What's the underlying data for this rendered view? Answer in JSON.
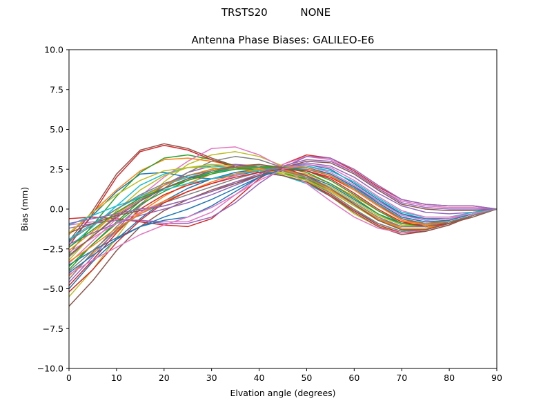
{
  "figure": {
    "suptitle": "TRSTS20          NONE"
  },
  "chart_data": {
    "type": "line",
    "title": "Antenna Phase Biases: GALILEO-E6",
    "xlabel": "Elvation angle (degrees)",
    "ylabel": "Bias (mm)",
    "xlim": [
      0,
      90
    ],
    "ylim": [
      -10,
      10
    ],
    "xticks": [
      0,
      10,
      20,
      30,
      40,
      50,
      60,
      70,
      80,
      90
    ],
    "yticks": [
      -10.0,
      -7.5,
      -5.0,
      -2.5,
      0.0,
      2.5,
      5.0,
      7.5,
      10.0
    ],
    "grid": false,
    "legend": "none",
    "x": [
      0,
      5,
      10,
      15,
      20,
      25,
      30,
      35,
      40,
      45,
      50,
      55,
      60,
      65,
      70,
      75,
      80,
      85,
      90
    ],
    "series": [
      {
        "color": "#1f77b4",
        "values": [
          -5.0,
          -3.3,
          -1.9,
          -0.6,
          0.5,
          1.3,
          1.9,
          2.3,
          2.5,
          2.4,
          2.1,
          1.5,
          0.6,
          -0.3,
          -0.9,
          -1.0,
          -0.8,
          -0.4,
          0.0
        ]
      },
      {
        "color": "#ff7f0e",
        "values": [
          -4.2,
          -2.8,
          -1.4,
          -0.2,
          0.8,
          1.6,
          2.2,
          2.6,
          2.7,
          2.5,
          2.1,
          1.3,
          0.3,
          -0.6,
          -1.2,
          -1.2,
          -0.9,
          -0.4,
          0.0
        ]
      },
      {
        "color": "#2ca02c",
        "values": [
          -3.8,
          -2.2,
          -0.8,
          0.5,
          1.5,
          2.1,
          2.5,
          2.7,
          2.6,
          2.3,
          1.8,
          1.0,
          0.0,
          -0.9,
          -1.4,
          -1.3,
          -0.9,
          -0.4,
          0.0
        ]
      },
      {
        "color": "#d62728",
        "values": [
          -0.6,
          -0.5,
          -0.6,
          -0.8,
          -1.0,
          -1.1,
          -0.6,
          0.6,
          1.9,
          2.8,
          3.4,
          3.2,
          2.4,
          1.4,
          0.6,
          0.3,
          0.2,
          0.2,
          0.0
        ]
      },
      {
        "color": "#9467bd",
        "values": [
          -4.6,
          -3.0,
          -1.3,
          0.3,
          1.5,
          2.3,
          2.7,
          2.8,
          2.7,
          2.4,
          1.9,
          1.1,
          0.2,
          -0.6,
          -1.1,
          -1.1,
          -0.8,
          -0.4,
          0.0
        ]
      },
      {
        "color": "#8c564b",
        "values": [
          -6.1,
          -4.5,
          -2.6,
          -1.1,
          -0.1,
          0.6,
          1.2,
          1.7,
          2.1,
          2.4,
          2.5,
          2.1,
          1.3,
          0.3,
          -0.6,
          -1.0,
          -0.9,
          -0.5,
          0.0
        ]
      },
      {
        "color": "#e377c2",
        "values": [
          -1.0,
          -0.8,
          -0.7,
          -0.7,
          -0.8,
          -0.8,
          -0.2,
          0.9,
          2.0,
          2.8,
          3.3,
          3.1,
          2.3,
          1.3,
          0.5,
          0.2,
          0.1,
          0.1,
          0.0
        ]
      },
      {
        "color": "#7f7f7f",
        "values": [
          -3.0,
          -1.7,
          -0.4,
          0.6,
          1.3,
          1.9,
          2.3,
          2.6,
          2.7,
          2.5,
          2.1,
          1.3,
          0.3,
          -0.7,
          -1.3,
          -1.3,
          -0.9,
          -0.4,
          0.0
        ]
      },
      {
        "color": "#bcbd22",
        "values": [
          -5.5,
          -3.8,
          -1.8,
          0.2,
          1.7,
          2.8,
          3.4,
          3.6,
          3.3,
          2.7,
          1.8,
          0.8,
          -0.3,
          -1.1,
          -1.5,
          -1.3,
          -0.9,
          -0.4,
          0.0
        ]
      },
      {
        "color": "#17becf",
        "values": [
          -2.4,
          -1.1,
          0.2,
          1.5,
          2.2,
          2.6,
          2.7,
          2.6,
          2.4,
          2.1,
          1.6,
          0.8,
          -0.1,
          -0.9,
          -1.4,
          -1.3,
          -0.9,
          -0.4,
          0.0
        ]
      },
      {
        "color": "#1f77b4",
        "values": [
          -2.1,
          -0.4,
          1.1,
          2.2,
          2.3,
          2.0,
          1.9,
          2.1,
          2.4,
          2.6,
          2.6,
          2.2,
          1.4,
          0.5,
          -0.3,
          -0.6,
          -0.6,
          -0.3,
          0.0
        ]
      },
      {
        "color": "#ff7f0e",
        "values": [
          -1.6,
          -0.2,
          1.2,
          2.4,
          3.1,
          3.2,
          3.0,
          2.7,
          2.5,
          2.4,
          2.2,
          1.6,
          0.8,
          -0.1,
          -0.8,
          -0.9,
          -0.7,
          -0.3,
          0.0
        ]
      },
      {
        "color": "#2ca02c",
        "values": [
          -2.8,
          -1.0,
          0.8,
          2.3,
          3.2,
          3.4,
          3.1,
          2.7,
          2.4,
          2.2,
          1.9,
          1.2,
          0.3,
          -0.6,
          -1.3,
          -1.3,
          -0.9,
          -0.4,
          0.0
        ]
      },
      {
        "color": "#d62728",
        "values": [
          -2.3,
          -0.3,
          2.0,
          3.6,
          4.0,
          3.7,
          3.1,
          2.6,
          2.3,
          2.1,
          1.7,
          0.9,
          -0.1,
          -1.0,
          -1.5,
          -1.4,
          -1.0,
          -0.4,
          0.0
        ]
      },
      {
        "color": "#9467bd",
        "values": [
          -1.2,
          -0.9,
          -0.7,
          -0.7,
          -0.9,
          -0.9,
          -0.5,
          0.4,
          1.6,
          2.6,
          3.3,
          3.2,
          2.5,
          1.5,
          0.6,
          0.3,
          0.2,
          0.2,
          0.0
        ]
      },
      {
        "color": "#8c564b",
        "values": [
          -2.0,
          -0.1,
          2.2,
          3.7,
          4.1,
          3.8,
          3.2,
          2.7,
          2.3,
          2.1,
          1.7,
          0.8,
          -0.2,
          -1.1,
          -1.6,
          -1.4,
          -1.0,
          -0.4,
          0.0
        ]
      },
      {
        "color": "#e377c2",
        "values": [
          -3.4,
          -2.0,
          -0.6,
          0.8,
          2.0,
          3.0,
          3.8,
          3.9,
          3.4,
          2.6,
          1.6,
          0.5,
          -0.5,
          -1.2,
          -1.5,
          -1.3,
          -0.9,
          -0.4,
          0.0
        ]
      },
      {
        "color": "#7f7f7f",
        "values": [
          -4.4,
          -2.7,
          -1.1,
          0.2,
          1.3,
          2.3,
          3.0,
          3.3,
          3.1,
          2.6,
          1.9,
          1.0,
          0.0,
          -0.9,
          -1.4,
          -1.3,
          -0.9,
          -0.4,
          0.0
        ]
      },
      {
        "color": "#bcbd22",
        "values": [
          -3.2,
          -1.6,
          -0.1,
          1.2,
          2.1,
          2.6,
          2.8,
          2.7,
          2.5,
          2.2,
          1.8,
          1.1,
          0.2,
          -0.7,
          -1.2,
          -1.2,
          -0.9,
          -0.4,
          0.0
        ]
      },
      {
        "color": "#17becf",
        "values": [
          -1.9,
          -0.9,
          0.0,
          0.8,
          1.5,
          2.0,
          2.3,
          2.5,
          2.6,
          2.6,
          2.6,
          2.2,
          1.4,
          0.4,
          -0.5,
          -0.8,
          -0.7,
          -0.3,
          0.0
        ]
      },
      {
        "color": "#1f77b4",
        "values": [
          -3.5,
          -2.6,
          -1.8,
          -1.1,
          -0.7,
          -0.5,
          0.2,
          1.1,
          2.0,
          2.6,
          2.8,
          2.5,
          1.6,
          0.6,
          -0.3,
          -0.7,
          -0.6,
          -0.3,
          0.0
        ]
      },
      {
        "color": "#ff7f0e",
        "values": [
          -2.6,
          -1.4,
          -0.3,
          0.7,
          1.5,
          2.1,
          2.5,
          2.7,
          2.7,
          2.5,
          2.0,
          1.2,
          0.3,
          -0.6,
          -1.2,
          -1.2,
          -0.9,
          -0.4,
          0.0
        ]
      },
      {
        "color": "#2ca02c",
        "values": [
          -3.6,
          -2.2,
          -0.9,
          0.3,
          1.1,
          1.8,
          2.3,
          2.6,
          2.7,
          2.6,
          2.3,
          1.6,
          0.7,
          -0.3,
          -1.0,
          -1.1,
          -0.8,
          -0.4,
          0.0
        ]
      },
      {
        "color": "#d62728",
        "values": [
          -4.8,
          -3.2,
          -1.5,
          0.0,
          0.9,
          1.5,
          1.9,
          2.2,
          2.4,
          2.5,
          2.4,
          2.0,
          1.2,
          0.2,
          -0.6,
          -0.9,
          -0.8,
          -0.4,
          0.0
        ]
      },
      {
        "color": "#9467bd",
        "values": [
          -2.2,
          -1.5,
          -0.9,
          -0.4,
          0.0,
          0.4,
          0.9,
          1.5,
          2.1,
          2.6,
          2.9,
          2.7,
          2.0,
          1.0,
          0.2,
          -0.2,
          -0.3,
          -0.2,
          0.0
        ]
      },
      {
        "color": "#8c564b",
        "values": [
          -1.5,
          -0.9,
          -0.4,
          -0.1,
          0.2,
          0.6,
          1.1,
          1.6,
          2.1,
          2.6,
          3.0,
          2.9,
          2.2,
          1.2,
          0.3,
          0.0,
          -0.1,
          -0.1,
          0.0
        ]
      },
      {
        "color": "#e377c2",
        "values": [
          -2.7,
          -1.8,
          -0.9,
          -0.2,
          0.5,
          1.1,
          1.6,
          2.1,
          2.5,
          2.7,
          2.7,
          2.3,
          1.5,
          0.5,
          -0.4,
          -0.7,
          -0.6,
          -0.3,
          0.0
        ]
      },
      {
        "color": "#7f7f7f",
        "values": [
          -3.9,
          -2.6,
          -1.3,
          -0.3,
          0.4,
          0.9,
          1.4,
          1.9,
          2.3,
          2.5,
          2.5,
          2.1,
          1.3,
          0.3,
          -0.6,
          -0.9,
          -0.8,
          -0.4,
          0.0
        ]
      },
      {
        "color": "#bcbd22",
        "values": [
          -1.5,
          -0.2,
          0.9,
          1.8,
          2.4,
          2.6,
          2.6,
          2.5,
          2.4,
          2.3,
          2.0,
          1.4,
          0.5,
          -0.4,
          -1.0,
          -1.1,
          -0.8,
          -0.4,
          0.0
        ]
      },
      {
        "color": "#17becf",
        "values": [
          -1.0,
          -0.4,
          0.2,
          0.7,
          1.2,
          1.6,
          1.9,
          2.2,
          2.4,
          2.6,
          2.7,
          2.4,
          1.7,
          0.7,
          -0.2,
          -0.5,
          -0.5,
          -0.2,
          0.0
        ]
      },
      {
        "color": "#1f77b4",
        "values": [
          -4.0,
          -2.9,
          -1.9,
          -1.1,
          -0.5,
          0.0,
          0.6,
          1.3,
          2.0,
          2.5,
          2.6,
          2.2,
          1.4,
          0.4,
          -0.5,
          -0.8,
          -0.7,
          -0.3,
          0.0
        ]
      },
      {
        "color": "#ff7f0e",
        "values": [
          -3.3,
          -2.3,
          -1.2,
          -0.3,
          0.5,
          1.1,
          1.7,
          2.2,
          2.5,
          2.7,
          2.6,
          2.1,
          1.2,
          0.2,
          -0.7,
          -1.0,
          -0.8,
          -0.4,
          0.0
        ]
      },
      {
        "color": "#2ca02c",
        "values": [
          -2.4,
          -1.3,
          -0.2,
          0.7,
          1.3,
          1.8,
          2.2,
          2.5,
          2.6,
          2.6,
          2.4,
          1.8,
          0.9,
          -0.1,
          -0.9,
          -1.1,
          -0.8,
          -0.4,
          0.0
        ]
      },
      {
        "color": "#d62728",
        "values": [
          -5.2,
          -3.8,
          -2.1,
          -0.7,
          0.4,
          1.1,
          1.6,
          2.0,
          2.3,
          2.5,
          2.4,
          1.9,
          1.0,
          0.0,
          -0.8,
          -1.1,
          -0.9,
          -0.4,
          0.0
        ]
      },
      {
        "color": "#9467bd",
        "values": [
          -0.9,
          -0.6,
          -0.3,
          0.0,
          0.2,
          0.6,
          1.1,
          1.7,
          2.2,
          2.7,
          3.1,
          3.0,
          2.3,
          1.3,
          0.4,
          0.1,
          0.0,
          0.0,
          0.0
        ]
      },
      {
        "color": "#8c564b",
        "values": [
          -2.9,
          -1.7,
          -0.5,
          0.5,
          1.3,
          1.9,
          2.4,
          2.7,
          2.8,
          2.6,
          2.1,
          1.3,
          0.3,
          -0.7,
          -1.3,
          -1.3,
          -0.9,
          -0.4,
          0.0
        ]
      },
      {
        "color": "#e377c2",
        "values": [
          -4.1,
          -3.2,
          -2.4,
          -1.6,
          -1.0,
          -0.5,
          0.1,
          0.9,
          1.8,
          2.5,
          2.8,
          2.6,
          1.8,
          0.8,
          -0.1,
          -0.5,
          -0.5,
          -0.3,
          0.0
        ]
      },
      {
        "color": "#7f7f7f",
        "values": [
          -2.0,
          -1.0,
          0.0,
          0.9,
          1.6,
          2.1,
          2.4,
          2.6,
          2.6,
          2.4,
          2.0,
          1.3,
          0.4,
          -0.5,
          -1.1,
          -1.1,
          -0.8,
          -0.4,
          0.0
        ]
      }
    ]
  }
}
